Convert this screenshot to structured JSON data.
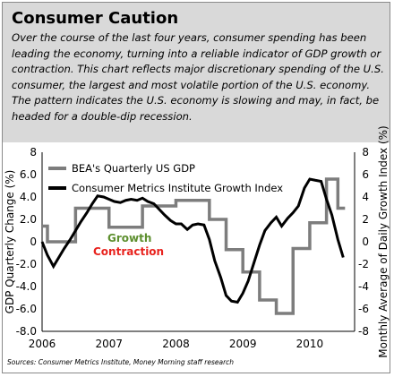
{
  "header": {
    "title": "Consumer Caution",
    "description": "Over the course of the last four years, consumer spending has been leading the economy, turning into a reliable indicator of GDP growth or contraction. This chart reflects major discretionary spending of the U.S. consumer, the largest and most volatile portion of the U.S. economy. The pattern indicates the U.S. economy is slowing and may, in fact, be headed for a double-dip recession."
  },
  "colors": {
    "gdp_series": "#7d7d7d",
    "index_series": "#000000",
    "growth_label": "#5d8f2e",
    "contraction_label": "#e8231e",
    "header_bg": "#d9d9d9"
  },
  "chart_data": {
    "type": "line",
    "xlabel": "",
    "ylabel": "GDP Quarterly Change (%)",
    "y2label": "Monthly Average of Daily Growth Index (%)",
    "x_ticks": [
      "2006",
      "2007",
      "2008",
      "2009",
      "2010"
    ],
    "x_range": [
      2006.0,
      2010.67
    ],
    "ylim": [
      -8,
      8
    ],
    "y2lim": [
      -8,
      8
    ],
    "y_ticks": [
      "8",
      "6.0",
      "4.0",
      "2.0",
      "0",
      "-2.0",
      "-4.0",
      "-6.0",
      "-8.0"
    ],
    "y2_ticks": [
      "8",
      "6",
      "4",
      "2",
      "0",
      "-2",
      "-4",
      "-6",
      "-8"
    ],
    "grid": false,
    "legend_position": "top-left",
    "annotations": {
      "growth": "Growth",
      "contraction": "Contraction"
    },
    "series": [
      {
        "name": "BEA's Quarterly US GDP",
        "style": "step",
        "x": [
          2006.0,
          2006.08,
          2006.25,
          2006.5,
          2006.75,
          2007.0,
          2007.25,
          2007.5,
          2007.75,
          2008.0,
          2008.25,
          2008.5,
          2008.75,
          2009.0,
          2009.25,
          2009.5,
          2009.75,
          2010.0,
          2010.25,
          2010.42
        ],
        "y": [
          1.4,
          0.0,
          0.0,
          3.0,
          3.0,
          1.3,
          1.3,
          3.2,
          3.2,
          3.7,
          3.7,
          2.0,
          -0.7,
          -2.7,
          -5.2,
          -6.4,
          -0.6,
          1.7,
          5.6,
          3.0
        ]
      },
      {
        "name": "Consumer Metrics Institute Growth Index",
        "style": "line",
        "x": [
          2006.0,
          2006.08,
          2006.17,
          2006.25,
          2006.33,
          2006.42,
          2006.5,
          2006.58,
          2006.67,
          2006.75,
          2006.83,
          2006.92,
          2007.0,
          2007.08,
          2007.17,
          2007.25,
          2007.33,
          2007.42,
          2007.5,
          2007.58,
          2007.67,
          2007.75,
          2007.83,
          2007.92,
          2008.0,
          2008.08,
          2008.17,
          2008.25,
          2008.33,
          2008.42,
          2008.5,
          2008.58,
          2008.67,
          2008.75,
          2008.83,
          2008.92,
          2009.0,
          2009.08,
          2009.17,
          2009.25,
          2009.33,
          2009.42,
          2009.5,
          2009.58,
          2009.67,
          2009.75,
          2009.83,
          2009.92,
          2010.0,
          2010.08,
          2010.17,
          2010.25,
          2010.33,
          2010.42,
          2010.5
        ],
        "y": [
          0.0,
          -1.2,
          -2.2,
          -1.4,
          -0.6,
          0.2,
          1.0,
          1.8,
          2.6,
          3.4,
          4.1,
          4.0,
          3.8,
          3.6,
          3.5,
          3.7,
          3.8,
          3.7,
          3.9,
          3.6,
          3.4,
          2.9,
          2.4,
          1.9,
          1.6,
          1.6,
          1.1,
          1.5,
          1.6,
          1.5,
          0.2,
          -1.7,
          -3.2,
          -4.8,
          -5.3,
          -5.4,
          -4.6,
          -3.5,
          -1.8,
          -0.3,
          1.0,
          1.7,
          2.2,
          1.4,
          2.1,
          2.6,
          3.2,
          4.8,
          5.6,
          5.5,
          5.4,
          3.8,
          2.4,
          0.2,
          -1.4
        ]
      }
    ]
  },
  "source_text": "Sources: Consumer Metrics Institute, Money Morning staff research"
}
